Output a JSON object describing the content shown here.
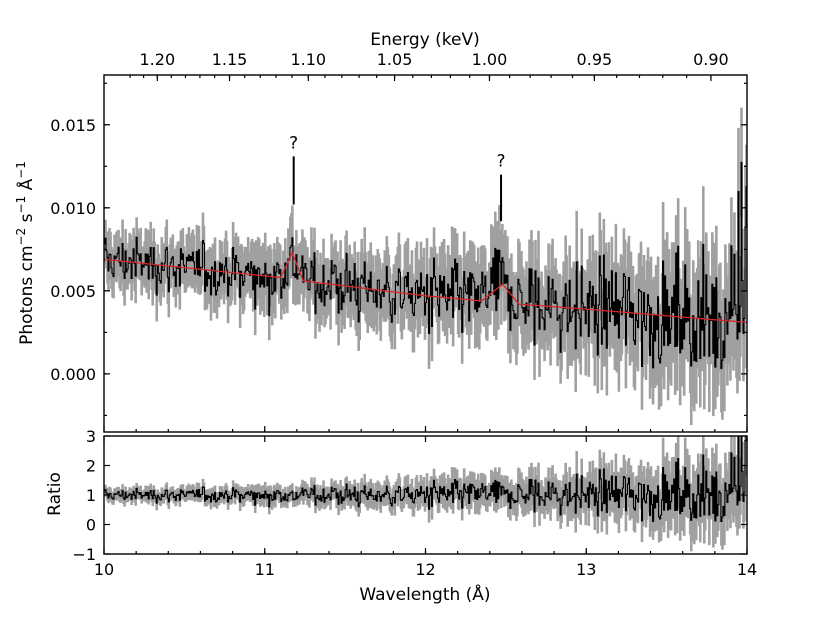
{
  "chart_data": {
    "type": "line",
    "panels": [
      {
        "id": "spectrum",
        "ylabel": "Photons cm$^{-2}$ s$^{-1}$ Å$^{-1}$",
        "ylabel_parts": [
          "Photons cm",
          "−2",
          " s",
          "−1",
          " Å",
          "−1"
        ],
        "xlim": [
          10,
          14
        ],
        "ylim": [
          -0.0035,
          0.018
        ],
        "yticks": [
          0.0,
          0.005,
          0.01,
          0.015
        ],
        "ytick_labels": [
          "0.000",
          "0.005",
          "0.010",
          "0.015"
        ],
        "series": [
          {
            "name": "data",
            "color": "#000000",
            "error_color": "#a0a0a0",
            "description": "noisy binned spectrum with error bars",
            "trend_x": [
              10.0,
              11.0,
              12.0,
              13.0,
              14.0
            ],
            "trend_y": [
              0.0068,
              0.0058,
              0.0047,
              0.0039,
              0.0031
            ]
          },
          {
            "name": "model",
            "color": "#d62728",
            "x": [
              10.0,
              10.5,
              11.0,
              11.1,
              11.17,
              11.24,
              11.5,
              12.0,
              12.35,
              12.48,
              12.58,
              13.0,
              13.5,
              14.0
            ],
            "y": [
              0.0069,
              0.0064,
              0.0059,
              0.0058,
              0.0073,
              0.0056,
              0.0053,
              0.0047,
              0.0044,
              0.0054,
              0.0042,
              0.0039,
              0.0035,
              0.0031
            ]
          }
        ],
        "annotations": [
          {
            "text": "?",
            "x": 11.18,
            "y_line": [
              0.0102,
              0.0131
            ]
          },
          {
            "text": "?",
            "x": 12.47,
            "y_line": [
              0.0092,
              0.012
            ]
          }
        ]
      },
      {
        "id": "ratio",
        "ylabel": "Ratio",
        "xlabel": "Wavelength (Å)",
        "xlim": [
          10,
          14
        ],
        "ylim": [
          -1,
          3
        ],
        "yticks": [
          -1,
          0,
          1,
          2,
          3
        ],
        "ytick_labels": [
          "−1",
          "0",
          "1",
          "2",
          "3"
        ],
        "xticks": [
          10,
          11,
          12,
          13,
          14
        ],
        "xtick_labels": [
          "10",
          "11",
          "12",
          "13",
          "14"
        ],
        "series": [
          {
            "name": "ratio",
            "color": "#000000",
            "error_color": "#a0a0a0",
            "baseline": 1.0
          }
        ]
      }
    ],
    "top_axis": {
      "label": "Energy (keV)",
      "ticks": [
        1.2,
        1.15,
        1.1,
        1.05,
        1.0,
        0.95,
        0.9
      ],
      "tick_labels": [
        "1.20",
        "1.15",
        "1.10",
        "1.05",
        "1.00",
        "0.95",
        "0.90"
      ],
      "conversion": "wavelength = 12.398 / energy"
    }
  }
}
